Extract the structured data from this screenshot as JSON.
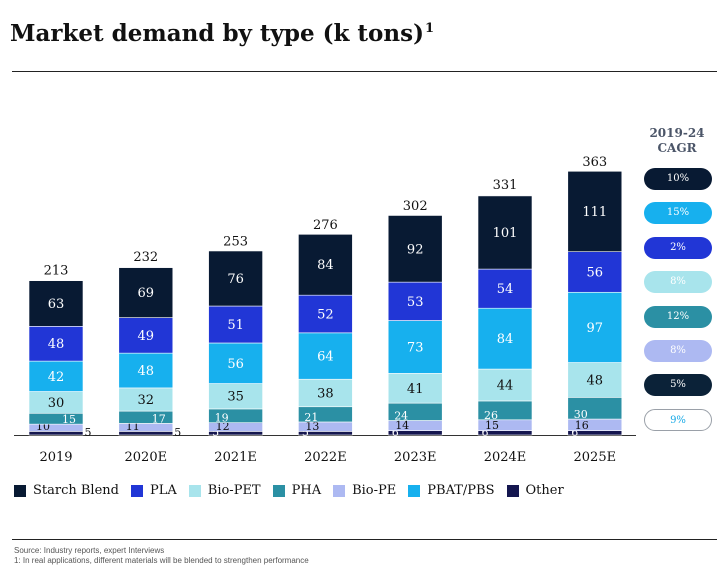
{
  "title": "Market demand by type (k tons)",
  "title_sup": "1",
  "cagr_title": "2019-24",
  "cagr_subtitle": "CAGR",
  "cagr": [
    {
      "segment": "Starch Blend",
      "value": "10%",
      "bg": "#081a33",
      "fg": "#ffffff"
    },
    {
      "segment": "PBAT/PBS",
      "value": "15%",
      "bg": "#17b0ee",
      "fg": "#ffffff"
    },
    {
      "segment": "PLA",
      "value": "2%",
      "bg": "#2136d6",
      "fg": "#ffffff"
    },
    {
      "segment": "Bio-PET",
      "value": "8%",
      "bg": "#a8e4ec",
      "fg": "#ffffff"
    },
    {
      "segment": "PHA",
      "value": "12%",
      "bg": "#2b90a4",
      "fg": "#ffffff"
    },
    {
      "segment": "Bio-PE",
      "value": "8%",
      "bg": "#adb9f2",
      "fg": "#ffffff"
    },
    {
      "segment": "Other",
      "value": "5%",
      "bg": "#0b2238",
      "fg": "#ffffff"
    },
    {
      "segment": "Total",
      "value": "9%",
      "bg": "#ffffff",
      "fg": "#17a9e6",
      "border": "#9aa0a8"
    }
  ],
  "chart_data": {
    "type": "bar",
    "stacked": true,
    "title": "Market demand by type (k tons)",
    "unit": "k tons",
    "categories": [
      "2019",
      "2020E",
      "2021E",
      "2022E",
      "2023E",
      "2024E",
      "2025E"
    ],
    "totals": [
      213,
      232,
      253,
      276,
      302,
      331,
      363
    ],
    "series": [
      {
        "name": "Other",
        "color": "#14164f",
        "values": [
          5,
          5,
          5,
          5,
          6,
          6,
          6
        ]
      },
      {
        "name": "Bio-PE",
        "color": "#adb9f2",
        "values": [
          10,
          11,
          12,
          13,
          14,
          15,
          16
        ]
      },
      {
        "name": "PHA",
        "color": "#2b90a4",
        "values": [
          15,
          17,
          19,
          21,
          24,
          26,
          30
        ]
      },
      {
        "name": "Bio-PET",
        "color": "#a8e4ec",
        "values": [
          30,
          32,
          35,
          38,
          41,
          44,
          48
        ]
      },
      {
        "name": "PBAT/PBS",
        "color": "#17b0ee",
        "values": [
          42,
          48,
          56,
          64,
          73,
          84,
          97
        ]
      },
      {
        "name": "PLA",
        "color": "#2136d6",
        "values": [
          48,
          49,
          51,
          52,
          53,
          54,
          56
        ]
      },
      {
        "name": "Starch Blend",
        "color": "#081a33",
        "values": [
          63,
          69,
          76,
          84,
          92,
          101,
          111
        ]
      }
    ],
    "legend": [
      {
        "name": "Starch Blend",
        "color": "#081a33"
      },
      {
        "name": "PLA",
        "color": "#2136d6"
      },
      {
        "name": "Bio-PET",
        "color": "#a8e4ec"
      },
      {
        "name": "PHA",
        "color": "#2b90a4"
      },
      {
        "name": "Bio-PE",
        "color": "#adb9f2"
      },
      {
        "name": "PBAT/PBS",
        "color": "#17b0ee"
      },
      {
        "name": "Other",
        "color": "#14164f"
      }
    ],
    "legend_position": "bottom",
    "ylim": [
      0,
      363
    ]
  },
  "footnotes": {
    "source": "Source: Industry reports, expert Interviews",
    "note": "1: In real applications, different materials will be blended to strengthen performance"
  }
}
